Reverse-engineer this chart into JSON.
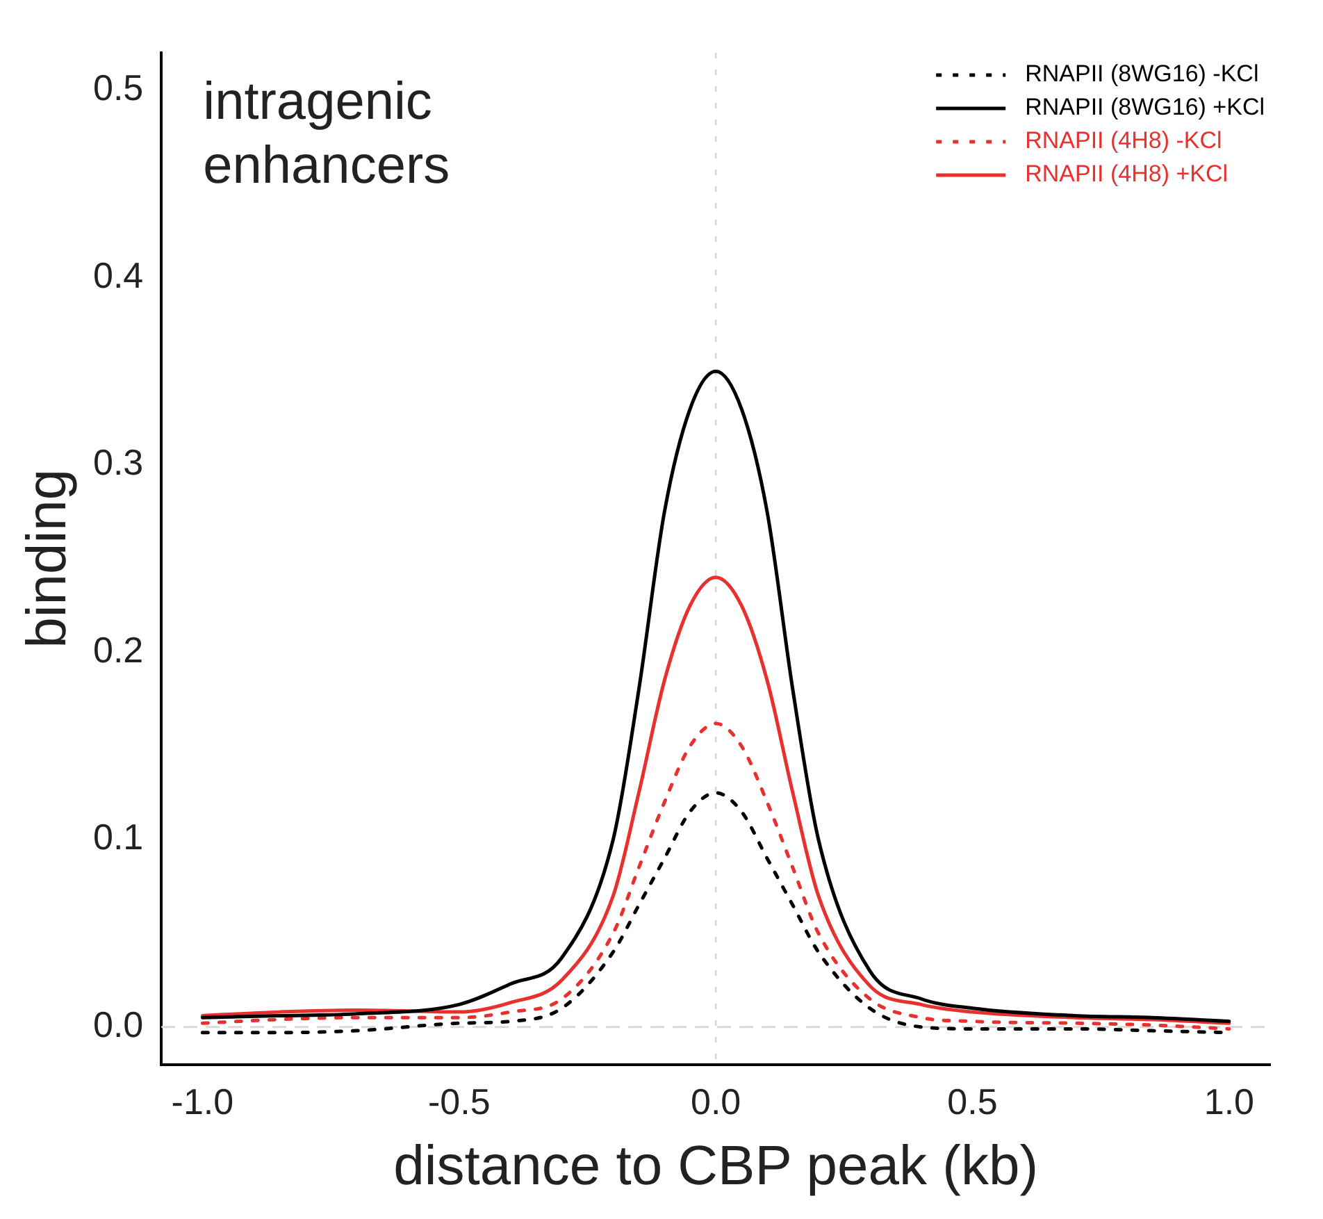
{
  "chart_data": {
    "type": "line",
    "xlabel": "distance to CBP peak (kb)",
    "ylabel": "binding",
    "annotations": [
      "intragenic\nenhancers"
    ],
    "x": [
      -1,
      -0.85,
      -0.7,
      -0.5,
      -0.4,
      -0.3,
      -0.2,
      -0.15,
      -0.1,
      -0.05,
      0,
      0.05,
      0.1,
      0.15,
      0.2,
      0.3,
      0.4,
      0.5,
      0.7,
      0.85,
      1
    ],
    "series": [
      {
        "name": "RNAPII (8WG16) -KCl",
        "color": "#000000",
        "line_style": "dotted",
        "values": [
          -0.003,
          -0.003,
          -0.002,
          0.002,
          0.003,
          0.01,
          0.04,
          0.065,
          0.09,
          0.115,
          0.125,
          0.115,
          0.09,
          0.065,
          0.04,
          0.01,
          0,
          -0.001,
          -0.001,
          -0.002,
          -0.003
        ]
      },
      {
        "name": "RNAPII (8WG16) +KCl",
        "color": "#000000",
        "line_style": "solid",
        "values": [
          0.005,
          0.006,
          0.007,
          0.012,
          0.023,
          0.037,
          0.1,
          0.18,
          0.275,
          0.33,
          0.35,
          0.33,
          0.275,
          0.18,
          0.1,
          0.03,
          0.015,
          0.01,
          0.006,
          0.005,
          0.003
        ]
      },
      {
        "name": "RNAPII (4H8) -KCl",
        "color": "#e8302f",
        "line_style": "dotted",
        "values": [
          0.002,
          0.004,
          0.005,
          0.005,
          0.008,
          0.015,
          0.05,
          0.085,
          0.12,
          0.15,
          0.162,
          0.15,
          0.12,
          0.085,
          0.05,
          0.015,
          0.005,
          0.003,
          0.002,
          0.001,
          -0.001
        ]
      },
      {
        "name": "RNAPII (4H8) +KCl",
        "color": "#e8302f",
        "line_style": "solid",
        "values": [
          0.006,
          0.008,
          0.009,
          0.008,
          0.013,
          0.025,
          0.07,
          0.125,
          0.185,
          0.225,
          0.24,
          0.225,
          0.185,
          0.125,
          0.07,
          0.022,
          0.012,
          0.008,
          0.005,
          0.004,
          0.002
        ]
      }
    ],
    "xlim": [
      -1.08,
      1.08
    ],
    "xticks": [
      {
        "value": -1,
        "label": "-1.0"
      },
      -0.5,
      {
        "value": 0,
        "label": "0.0"
      },
      0.5,
      {
        "value": 1,
        "label": "1.0"
      }
    ],
    "ylim": [
      -0.02,
      0.52
    ],
    "yticks": [
      {
        "value": 0,
        "label": "0.0"
      },
      0.1,
      0.2,
      0.3,
      0.4,
      0.5
    ],
    "ref_lines": [
      {
        "axis": "x",
        "value": 0,
        "color": "#d9d9d9",
        "line_style": "dotted"
      },
      {
        "axis": "y",
        "value": 0,
        "color": "#d9d9d9",
        "line_style": "dashed"
      }
    ],
    "grid": false,
    "legend": "top right"
  }
}
